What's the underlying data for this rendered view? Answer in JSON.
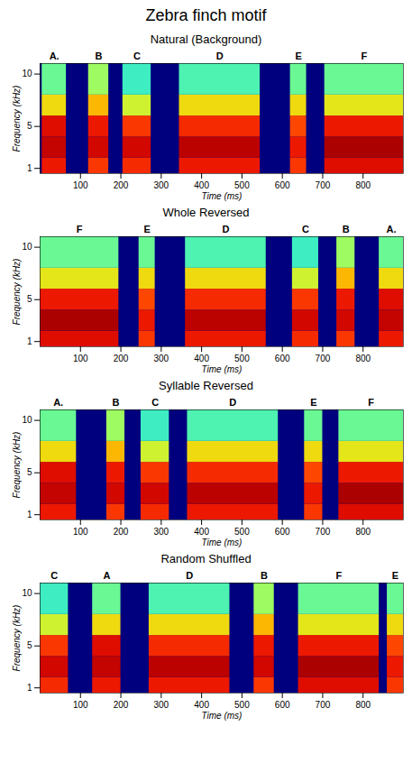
{
  "chart_data": [
    {
      "type": "heatmap",
      "title": "Zebra finch motif",
      "subtitle": "Natural (Background)",
      "x_label": "Time (ms)",
      "y_label": "Frequency (kHz)",
      "xlim": [
        0,
        900
      ],
      "xticks": [
        100,
        200,
        300,
        400,
        500,
        600,
        700,
        800
      ],
      "ylim": [
        0.5,
        11
      ],
      "yticks": [
        1,
        5,
        10
      ],
      "freq_bands": [
        0.5,
        2,
        4,
        6,
        8,
        11
      ],
      "color_domain": [
        0,
        1
      ],
      "syllables": [
        {
          "label": "A.",
          "start": 5,
          "end": 65,
          "intensity": [
            0.85,
            0.92,
            0.88,
            0.6,
            0.45
          ]
        },
        {
          "label": "B",
          "start": 120,
          "end": 170,
          "intensity": [
            0.8,
            0.9,
            0.85,
            0.65,
            0.5
          ]
        },
        {
          "label": "C",
          "start": 205,
          "end": 275,
          "intensity": [
            0.82,
            0.9,
            0.8,
            0.55,
            0.4
          ]
        },
        {
          "label": "D",
          "start": 345,
          "end": 545,
          "intensity": [
            0.85,
            0.93,
            0.82,
            0.6,
            0.42
          ]
        },
        {
          "label": "E",
          "start": 620,
          "end": 660,
          "intensity": [
            0.8,
            0.85,
            0.78,
            0.6,
            0.45
          ]
        },
        {
          "label": "F",
          "start": 705,
          "end": 900,
          "intensity": [
            0.88,
            0.95,
            0.85,
            0.58,
            0.45
          ]
        }
      ]
    },
    {
      "type": "heatmap",
      "subtitle": "Whole Reversed",
      "x_label": "Time (ms)",
      "y_label": "Frequency (kHz)",
      "xlim": [
        0,
        900
      ],
      "xticks": [
        100,
        200,
        300,
        400,
        500,
        600,
        700,
        800
      ],
      "ylim": [
        0.5,
        11
      ],
      "yticks": [
        1,
        5,
        10
      ],
      "freq_bands": [
        0.5,
        2,
        4,
        6,
        8,
        11
      ],
      "color_domain": [
        0,
        1
      ],
      "syllables": [
        {
          "label": "F",
          "start": 0,
          "end": 195,
          "intensity": [
            0.88,
            0.95,
            0.85,
            0.58,
            0.45
          ]
        },
        {
          "label": "E",
          "start": 245,
          "end": 285,
          "intensity": [
            0.8,
            0.85,
            0.78,
            0.6,
            0.45
          ]
        },
        {
          "label": "D",
          "start": 360,
          "end": 560,
          "intensity": [
            0.85,
            0.93,
            0.82,
            0.6,
            0.42
          ]
        },
        {
          "label": "C",
          "start": 625,
          "end": 690,
          "intensity": [
            0.82,
            0.9,
            0.8,
            0.55,
            0.4
          ]
        },
        {
          "label": "B",
          "start": 735,
          "end": 780,
          "intensity": [
            0.8,
            0.9,
            0.85,
            0.65,
            0.5
          ]
        },
        {
          "label": "A.",
          "start": 840,
          "end": 900,
          "intensity": [
            0.85,
            0.92,
            0.88,
            0.6,
            0.45
          ]
        }
      ]
    },
    {
      "type": "heatmap",
      "subtitle": "Syllable Reversed",
      "x_label": "Time (ms)",
      "y_label": "Frequency (kHz)",
      "xlim": [
        0,
        900
      ],
      "xticks": [
        100,
        200,
        300,
        400,
        500,
        600,
        700,
        800
      ],
      "ylim": [
        0.5,
        11
      ],
      "yticks": [
        1,
        5,
        10
      ],
      "freq_bands": [
        0.5,
        2,
        4,
        6,
        8,
        11
      ],
      "color_domain": [
        0,
        1
      ],
      "syllables": [
        {
          "label": "A.",
          "start": 0,
          "end": 90,
          "intensity": [
            0.85,
            0.92,
            0.88,
            0.6,
            0.45
          ]
        },
        {
          "label": "B",
          "start": 165,
          "end": 210,
          "intensity": [
            0.8,
            0.9,
            0.85,
            0.65,
            0.5
          ]
        },
        {
          "label": "C",
          "start": 250,
          "end": 320,
          "intensity": [
            0.82,
            0.9,
            0.8,
            0.55,
            0.4
          ]
        },
        {
          "label": "D",
          "start": 365,
          "end": 590,
          "intensity": [
            0.85,
            0.93,
            0.82,
            0.6,
            0.42
          ]
        },
        {
          "label": "E",
          "start": 655,
          "end": 700,
          "intensity": [
            0.8,
            0.85,
            0.78,
            0.6,
            0.45
          ]
        },
        {
          "label": "F",
          "start": 740,
          "end": 900,
          "intensity": [
            0.88,
            0.95,
            0.85,
            0.58,
            0.45
          ]
        }
      ]
    },
    {
      "type": "heatmap",
      "subtitle": "Random Shuffled",
      "x_label": "Time (ms)",
      "y_label": "Frequency (kHz)",
      "xlim": [
        0,
        900
      ],
      "xticks": [
        100,
        200,
        300,
        400,
        500,
        600,
        700,
        800
      ],
      "ylim": [
        0.5,
        11
      ],
      "yticks": [
        1,
        5,
        10
      ],
      "freq_bands": [
        0.5,
        2,
        4,
        6,
        8,
        11
      ],
      "color_domain": [
        0,
        1
      ],
      "syllables": [
        {
          "label": "C",
          "start": 0,
          "end": 70,
          "intensity": [
            0.82,
            0.9,
            0.8,
            0.55,
            0.4
          ]
        },
        {
          "label": "A",
          "start": 130,
          "end": 200,
          "intensity": [
            0.85,
            0.92,
            0.88,
            0.6,
            0.45
          ]
        },
        {
          "label": "D",
          "start": 270,
          "end": 470,
          "intensity": [
            0.85,
            0.93,
            0.82,
            0.6,
            0.42
          ]
        },
        {
          "label": "B",
          "start": 530,
          "end": 580,
          "intensity": [
            0.8,
            0.9,
            0.85,
            0.65,
            0.5
          ]
        },
        {
          "label": "F",
          "start": 640,
          "end": 840,
          "intensity": [
            0.88,
            0.95,
            0.85,
            0.58,
            0.45
          ]
        },
        {
          "label": "E",
          "start": 860,
          "end": 900,
          "intensity": [
            0.8,
            0.85,
            0.78,
            0.6,
            0.45
          ]
        }
      ]
    }
  ]
}
